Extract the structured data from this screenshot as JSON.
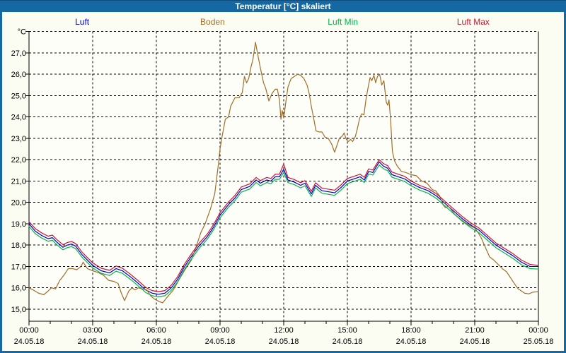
{
  "window": {
    "title": "Temperatur [°C] skaliert"
  },
  "theme": {
    "titlebar_bg": "#1668A2",
    "titlebar_text": "#FFFFFF",
    "window_border": "#1668A2",
    "content_bg": "#FBFCF2",
    "plot_bg": "#FEFEF9",
    "grid_color": "#000000",
    "axis_color": "#000000"
  },
  "chart_data": {
    "type": "line",
    "title": "Temperatur [°C] skaliert",
    "grid": "dashed",
    "legend_position": "top",
    "xlabel": "",
    "ylabel": "°C",
    "ylim": [
      14.4,
      28.0
    ],
    "xlim_hours": [
      0,
      24
    ],
    "x_major_step_hours": 3,
    "x_minor_step_hours": 1,
    "y_tick_labels": [
      {
        "value": 28,
        "label": "°C"
      },
      {
        "value": 27,
        "label": "27,0"
      },
      {
        "value": 26,
        "label": "26,0"
      },
      {
        "value": 25,
        "label": "25,0"
      },
      {
        "value": 24,
        "label": "24,0"
      },
      {
        "value": 23,
        "label": "23,0"
      },
      {
        "value": 22,
        "label": "22,0"
      },
      {
        "value": 21,
        "label": "21,0"
      },
      {
        "value": 20,
        "label": "20,0"
      },
      {
        "value": 19,
        "label": "19,0"
      },
      {
        "value": 18,
        "label": "18,0"
      },
      {
        "value": 17,
        "label": "17,0"
      },
      {
        "value": 16,
        "label": "16,0"
      },
      {
        "value": 15,
        "label": "15,0"
      }
    ],
    "x_ticks": [
      {
        "hour": 0,
        "time": "00:00",
        "date": "24.05.18"
      },
      {
        "hour": 3,
        "time": "03:00",
        "date": "24.05.18"
      },
      {
        "hour": 6,
        "time": "06:00",
        "date": "24.05.18"
      },
      {
        "hour": 9,
        "time": "09:00",
        "date": "24.05.18"
      },
      {
        "hour": 12,
        "time": "12:00",
        "date": "24.05.18"
      },
      {
        "hour": 15,
        "time": "15:00",
        "date": "24.05.18"
      },
      {
        "hour": 18,
        "time": "18:00",
        "date": "24.05.18"
      },
      {
        "hour": 21,
        "time": "21:00",
        "date": "24.05.18"
      },
      {
        "hour": 24,
        "time": "00:00",
        "date": "25.05.18"
      }
    ],
    "series": [
      {
        "name": "Luft",
        "color": "#0000C8",
        "x": [
          0,
          0.3,
          0.6,
          0.9,
          1.1,
          1.3,
          1.6,
          1.8,
          2.0,
          2.2,
          2.5,
          3.0,
          3.4,
          3.8,
          4.1,
          4.4,
          4.8,
          5.1,
          5.5,
          5.8,
          6.1,
          6.4,
          6.7,
          7.0,
          7.3,
          7.6,
          8.0,
          8.4,
          8.7,
          9.0,
          9.4,
          9.7,
          10.0,
          10.4,
          10.7,
          10.9,
          11.2,
          11.4,
          11.6,
          11.8,
          12.0,
          12.2,
          12.5,
          12.8,
          13.0,
          13.3,
          13.5,
          13.8,
          14.1,
          14.4,
          14.7,
          15.0,
          15.3,
          15.6,
          15.8,
          16.0,
          16.2,
          16.5,
          16.7,
          16.9,
          17.1,
          17.4,
          17.7,
          18.0,
          18.4,
          18.8,
          19.2,
          19.6,
          20.0,
          20.4,
          20.8,
          21.2,
          21.6,
          22.0,
          22.4,
          22.8,
          23.2,
          23.6,
          24.0
        ],
        "values": [
          19.0,
          18.65,
          18.45,
          18.3,
          18.35,
          18.15,
          17.9,
          18.0,
          18.05,
          17.95,
          17.55,
          17.05,
          16.8,
          16.7,
          16.9,
          16.8,
          16.5,
          16.25,
          15.9,
          15.75,
          15.7,
          15.75,
          16.0,
          16.4,
          16.95,
          17.4,
          17.95,
          18.4,
          18.85,
          19.4,
          19.9,
          20.2,
          20.6,
          20.75,
          21.05,
          20.9,
          21.05,
          21.0,
          21.2,
          21.2,
          21.55,
          21.05,
          20.95,
          20.8,
          20.9,
          20.4,
          20.8,
          20.55,
          20.5,
          20.45,
          20.7,
          21.0,
          21.1,
          21.2,
          21.05,
          21.45,
          21.4,
          21.9,
          21.7,
          21.6,
          21.3,
          21.2,
          21.1,
          20.9,
          20.7,
          20.55,
          20.3,
          19.95,
          19.6,
          19.25,
          18.95,
          18.7,
          18.35,
          18.0,
          17.75,
          17.5,
          17.2,
          17.0,
          17.0
        ]
      },
      {
        "name": "Boden",
        "color": "#A06E28",
        "x": [
          0,
          0.2,
          0.45,
          0.7,
          0.9,
          1.05,
          1.25,
          1.45,
          1.65,
          1.85,
          2.05,
          2.25,
          2.45,
          2.55,
          2.75,
          3.0,
          3.25,
          3.5,
          3.75,
          4.0,
          4.2,
          4.35,
          4.5,
          4.7,
          4.85,
          5.0,
          5.15,
          5.35,
          5.55,
          5.75,
          5.95,
          6.15,
          6.3,
          6.5,
          6.8,
          7.05,
          7.35,
          7.65,
          7.9,
          8.1,
          8.3,
          8.55,
          8.75,
          8.9,
          9.0,
          9.1,
          9.25,
          9.4,
          9.5,
          9.7,
          9.9,
          10.05,
          10.15,
          10.25,
          10.35,
          10.45,
          10.55,
          10.67,
          10.8,
          10.9,
          11.05,
          11.15,
          11.3,
          11.45,
          11.6,
          11.7,
          11.8,
          11.87,
          11.93,
          12.0,
          12.1,
          12.2,
          12.35,
          12.5,
          12.65,
          12.8,
          12.95,
          13.1,
          13.2,
          13.3,
          13.42,
          13.52,
          13.65,
          13.8,
          13.95,
          14.1,
          14.25,
          14.4,
          14.5,
          14.62,
          14.75,
          14.85,
          14.95,
          15.05,
          15.15,
          15.25,
          15.38,
          15.48,
          15.58,
          15.68,
          15.78,
          15.88,
          15.98,
          16.07,
          16.15,
          16.25,
          16.33,
          16.42,
          16.52,
          16.62,
          16.72,
          16.83,
          16.9,
          16.96,
          17.03,
          17.12,
          17.22,
          17.35,
          17.55,
          17.75,
          18.0,
          18.25,
          18.5,
          18.75,
          19.0,
          19.15,
          19.35,
          19.5,
          19.62,
          19.75,
          19.9,
          20.05,
          20.35,
          20.7,
          21.0,
          21.15,
          21.3,
          21.5,
          21.7,
          21.9,
          22.1,
          22.3,
          22.5,
          22.7,
          22.9,
          23.05,
          23.2,
          23.35,
          23.55,
          23.75,
          24.0
        ],
        "values": [
          16.0,
          15.9,
          15.75,
          15.68,
          15.85,
          16.0,
          15.95,
          16.35,
          16.6,
          16.9,
          16.9,
          16.85,
          17.0,
          17.2,
          16.9,
          16.8,
          16.72,
          16.6,
          16.35,
          16.3,
          16.2,
          15.75,
          15.4,
          15.85,
          16.0,
          15.9,
          16.0,
          15.95,
          15.9,
          15.6,
          15.45,
          15.35,
          15.3,
          15.55,
          15.9,
          16.35,
          16.85,
          17.3,
          18.0,
          18.6,
          19.0,
          19.7,
          20.4,
          21.6,
          22.5,
          23.1,
          23.9,
          24.0,
          24.5,
          24.9,
          24.9,
          25.15,
          25.9,
          25.6,
          25.8,
          26.3,
          26.7,
          27.5,
          26.8,
          26.3,
          25.6,
          25.35,
          24.75,
          25.1,
          25.3,
          25.3,
          24.8,
          23.9,
          24.3,
          23.95,
          24.7,
          25.4,
          25.8,
          25.9,
          26.0,
          25.95,
          25.8,
          25.5,
          25.1,
          24.5,
          23.9,
          23.35,
          23.3,
          23.3,
          23.05,
          23.0,
          22.75,
          22.35,
          22.65,
          23.0,
          23.1,
          23.25,
          22.95,
          22.85,
          22.95,
          22.85,
          23.1,
          23.5,
          23.95,
          24.15,
          24.1,
          24.85,
          25.4,
          25.85,
          25.7,
          25.95,
          25.6,
          25.9,
          26.0,
          25.5,
          25.7,
          24.7,
          24.55,
          24.8,
          23.95,
          22.4,
          21.95,
          21.7,
          21.45,
          21.4,
          21.3,
          21.25,
          21.0,
          20.9,
          20.6,
          20.55,
          20.3,
          19.9,
          19.75,
          19.82,
          19.65,
          19.45,
          19.2,
          18.95,
          18.8,
          18.6,
          18.35,
          17.9,
          17.45,
          17.3,
          17.1,
          16.9,
          16.75,
          16.45,
          16.15,
          15.95,
          15.85,
          15.75,
          15.72,
          15.8,
          15.82
        ]
      },
      {
        "name": "Luft Min",
        "color": "#00B44C",
        "x": [
          0,
          0.3,
          0.6,
          0.9,
          1.1,
          1.3,
          1.6,
          1.8,
          2.0,
          2.2,
          2.5,
          3.0,
          3.4,
          3.8,
          4.1,
          4.4,
          4.8,
          5.1,
          5.5,
          5.8,
          6.1,
          6.4,
          6.7,
          7.0,
          7.3,
          7.6,
          8.0,
          8.4,
          8.7,
          9.0,
          9.4,
          9.7,
          10.0,
          10.4,
          10.7,
          10.9,
          11.2,
          11.4,
          11.6,
          11.8,
          12.0,
          12.2,
          12.5,
          12.8,
          13.0,
          13.3,
          13.5,
          13.8,
          14.1,
          14.4,
          14.7,
          15.0,
          15.3,
          15.6,
          15.8,
          16.0,
          16.2,
          16.5,
          16.7,
          16.9,
          17.1,
          17.4,
          17.7,
          18.0,
          18.4,
          18.8,
          19.2,
          19.6,
          20.0,
          20.4,
          20.8,
          21.2,
          21.6,
          22.0,
          22.4,
          22.8,
          23.2,
          23.6,
          24.0
        ],
        "values": [
          18.88,
          18.53,
          18.33,
          18.18,
          18.23,
          18.03,
          17.78,
          17.88,
          17.93,
          17.83,
          17.43,
          16.93,
          16.68,
          16.58,
          16.78,
          16.68,
          16.38,
          16.13,
          15.78,
          15.63,
          15.58,
          15.63,
          15.88,
          16.28,
          16.83,
          17.28,
          17.83,
          18.28,
          18.73,
          19.28,
          19.78,
          20.08,
          20.48,
          20.63,
          20.93,
          20.78,
          20.93,
          20.88,
          21.08,
          21.08,
          21.4,
          20.93,
          20.83,
          20.68,
          20.78,
          20.28,
          20.68,
          20.43,
          20.38,
          20.33,
          20.58,
          20.88,
          20.98,
          21.08,
          20.93,
          21.33,
          21.28,
          21.75,
          21.58,
          21.48,
          21.18,
          21.08,
          20.98,
          20.78,
          20.58,
          20.43,
          20.18,
          19.83,
          19.48,
          19.13,
          18.83,
          18.58,
          18.23,
          17.88,
          17.63,
          17.38,
          17.08,
          16.9,
          16.88
        ]
      },
      {
        "name": "Luft Max",
        "color": "#C81432",
        "x": [
          0,
          0.3,
          0.6,
          0.9,
          1.1,
          1.3,
          1.6,
          1.8,
          2.0,
          2.2,
          2.5,
          3.0,
          3.4,
          3.8,
          4.1,
          4.4,
          4.8,
          5.1,
          5.5,
          5.8,
          6.1,
          6.4,
          6.7,
          7.0,
          7.3,
          7.6,
          8.0,
          8.4,
          8.7,
          9.0,
          9.4,
          9.7,
          10.0,
          10.4,
          10.7,
          10.9,
          11.2,
          11.4,
          11.6,
          11.8,
          12.0,
          12.2,
          12.5,
          12.8,
          13.0,
          13.3,
          13.5,
          13.8,
          14.1,
          14.4,
          14.7,
          15.0,
          15.3,
          15.6,
          15.8,
          16.0,
          16.2,
          16.5,
          16.7,
          16.9,
          17.1,
          17.4,
          17.7,
          18.0,
          18.4,
          18.8,
          19.2,
          19.6,
          20.0,
          20.4,
          20.8,
          21.2,
          21.6,
          22.0,
          22.4,
          22.8,
          23.2,
          23.6,
          24.0
        ],
        "values": [
          19.1,
          18.77,
          18.57,
          18.42,
          18.47,
          18.27,
          18.02,
          18.12,
          18.17,
          18.07,
          17.67,
          17.17,
          16.92,
          16.82,
          17.02,
          16.92,
          16.62,
          16.37,
          16.02,
          15.87,
          15.82,
          15.87,
          16.12,
          16.52,
          17.07,
          17.52,
          18.07,
          18.52,
          18.97,
          19.52,
          20.02,
          20.32,
          20.72,
          20.87,
          21.17,
          21.02,
          21.17,
          21.12,
          21.32,
          21.32,
          21.8,
          21.17,
          21.07,
          20.92,
          21.02,
          20.52,
          20.92,
          20.67,
          20.62,
          20.57,
          20.82,
          21.12,
          21.22,
          21.32,
          21.17,
          21.57,
          21.52,
          22.0,
          21.82,
          21.72,
          21.42,
          21.32,
          21.22,
          21.0,
          20.8,
          20.65,
          20.4,
          20.05,
          19.7,
          19.35,
          19.05,
          18.8,
          18.45,
          18.1,
          17.85,
          17.6,
          17.3,
          17.1,
          17.05
        ]
      }
    ]
  }
}
